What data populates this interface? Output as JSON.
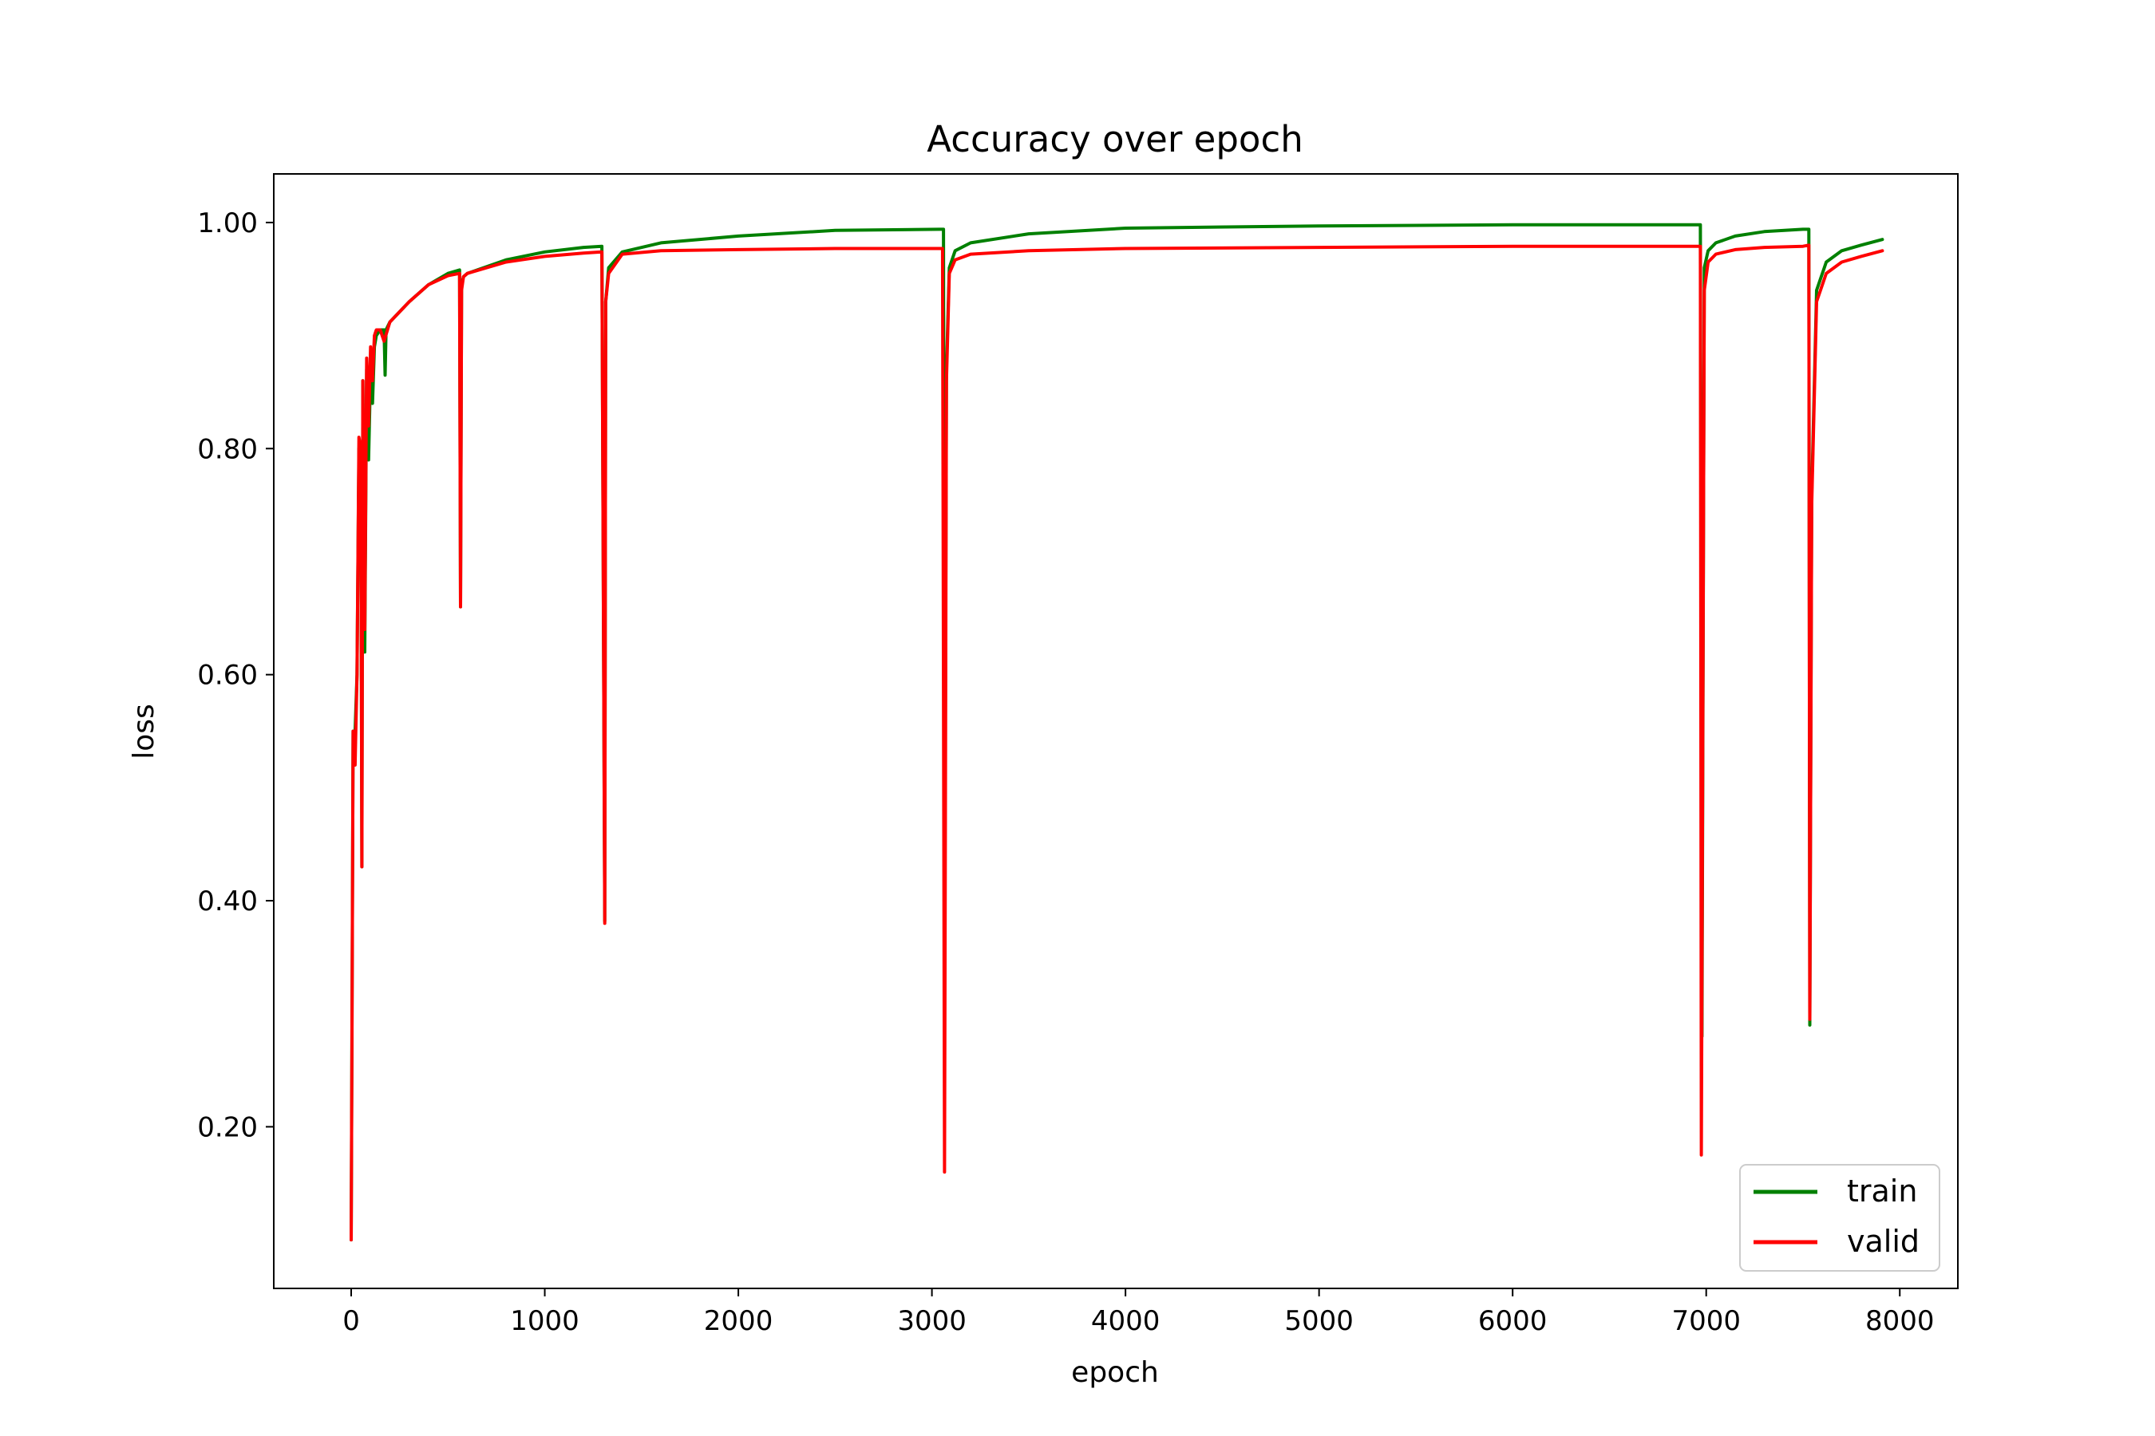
{
  "chart_data": {
    "type": "line",
    "title": "Accuracy over epoch",
    "xlabel": "epoch",
    "ylabel": "loss",
    "xlim": [
      -400,
      8300
    ],
    "ylim": [
      0.057,
      1.043
    ],
    "xticks": [
      0,
      1000,
      2000,
      3000,
      4000,
      5000,
      6000,
      7000,
      8000
    ],
    "xtick_labels": [
      "0",
      "1000",
      "2000",
      "3000",
      "4000",
      "5000",
      "6000",
      "7000",
      "8000"
    ],
    "yticks": [
      0.2,
      0.4,
      0.6,
      0.8,
      1.0
    ],
    "ytick_labels": [
      "0.20",
      "0.40",
      "0.60",
      "0.80",
      "1.00"
    ],
    "grid": false,
    "legend_position": "lower-right",
    "series": [
      {
        "name": "train",
        "color": "#008000",
        "x": [
          0,
          10,
          20,
          30,
          40,
          50,
          55,
          60,
          70,
          80,
          90,
          100,
          110,
          120,
          130,
          150,
          170,
          175,
          180,
          200,
          300,
          400,
          500,
          560,
          565,
          570,
          580,
          600,
          800,
          1000,
          1200,
          1295,
          1310,
          1315,
          1330,
          1400,
          1600,
          2000,
          2500,
          3040,
          3060,
          3065,
          3075,
          3090,
          3120,
          3200,
          3500,
          4000,
          5000,
          6000,
          6960,
          6970,
          6978,
          6990,
          7010,
          7050,
          7150,
          7300,
          7500,
          7530,
          7535,
          7545,
          7570,
          7620,
          7700,
          7800,
          7910
        ],
        "y": [
          0.1,
          0.55,
          0.55,
          0.6,
          0.8,
          0.78,
          0.43,
          0.86,
          0.62,
          0.87,
          0.79,
          0.87,
          0.84,
          0.89,
          0.9,
          0.905,
          0.905,
          0.865,
          0.905,
          0.912,
          0.93,
          0.945,
          0.955,
          0.958,
          0.66,
          0.945,
          0.952,
          0.955,
          0.967,
          0.974,
          0.978,
          0.979,
          0.382,
          0.93,
          0.96,
          0.974,
          0.982,
          0.988,
          0.993,
          0.994,
          0.994,
          0.3,
          0.87,
          0.96,
          0.975,
          0.982,
          0.99,
          0.995,
          0.997,
          0.998,
          0.998,
          0.998,
          0.28,
          0.96,
          0.975,
          0.982,
          0.988,
          0.992,
          0.994,
          0.994,
          0.29,
          0.76,
          0.94,
          0.965,
          0.975,
          0.98,
          0.985
        ]
      },
      {
        "name": "valid",
        "color": "#ff0000",
        "x": [
          0,
          10,
          20,
          30,
          40,
          50,
          55,
          60,
          70,
          80,
          90,
          100,
          110,
          120,
          130,
          150,
          170,
          200,
          300,
          400,
          500,
          560,
          565,
          570,
          580,
          600,
          800,
          1000,
          1200,
          1295,
          1310,
          1315,
          1330,
          1400,
          1600,
          2000,
          2500,
          3040,
          3055,
          3065,
          3075,
          3090,
          3120,
          3200,
          3500,
          4000,
          5000,
          6000,
          6960,
          6970,
          6975,
          6990,
          7010,
          7050,
          7150,
          7300,
          7500,
          7530,
          7535,
          7545,
          7570,
          7620,
          7700,
          7800,
          7910
        ],
        "y": [
          0.1,
          0.55,
          0.52,
          0.6,
          0.81,
          0.8,
          0.43,
          0.86,
          0.64,
          0.88,
          0.82,
          0.89,
          0.86,
          0.9,
          0.905,
          0.905,
          0.895,
          0.912,
          0.93,
          0.945,
          0.953,
          0.955,
          0.66,
          0.94,
          0.952,
          0.955,
          0.965,
          0.97,
          0.973,
          0.974,
          0.38,
          0.93,
          0.955,
          0.972,
          0.975,
          0.976,
          0.977,
          0.977,
          0.977,
          0.16,
          0.86,
          0.955,
          0.967,
          0.972,
          0.975,
          0.977,
          0.978,
          0.979,
          0.979,
          0.979,
          0.175,
          0.94,
          0.965,
          0.972,
          0.976,
          0.978,
          0.979,
          0.98,
          0.295,
          0.75,
          0.93,
          0.955,
          0.965,
          0.97,
          0.975
        ]
      }
    ]
  }
}
